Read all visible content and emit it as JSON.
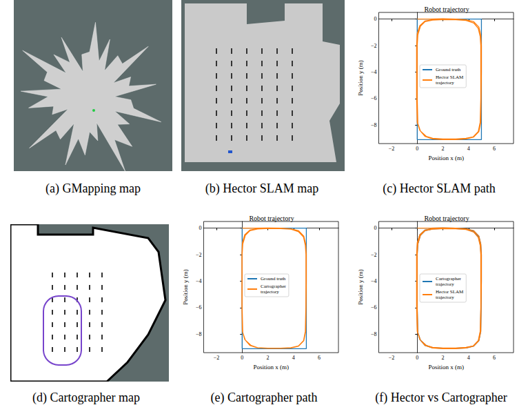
{
  "captions": [
    "(a) GMapping map",
    "(b) Hector SLAM map",
    "(c) Hector SLAM path",
    "(d) Cartographer map",
    "(e) Cartographer path",
    "(f) Hector vs Cartographer"
  ],
  "chart_data": [
    {
      "type": "line",
      "title": "Robot trajectory",
      "xlabel": "Position x (m)",
      "ylabel": "Position y (m)",
      "xlim": [
        -3,
        7.5
      ],
      "ylim": [
        -9.4,
        0.5
      ],
      "xticks": [
        {
          "value": -2,
          "label": "−2"
        },
        0,
        2,
        4,
        6
      ],
      "yticks": [
        {
          "value": -8,
          "label": "−8"
        },
        {
          "value": -6,
          "label": "−6"
        },
        {
          "value": -4,
          "label": "−4"
        },
        {
          "value": -2,
          "label": "−2"
        },
        0
      ],
      "grid": false,
      "legend": "center",
      "series": [
        {
          "name": "Ground truth",
          "color": "#1f77b4",
          "x": [
            0,
            5,
            5,
            0,
            0
          ],
          "values": [
            0,
            0,
            -9.1,
            -9.1,
            0
          ]
        },
        {
          "name": "Hector SLAM\ntrajectory",
          "color": "#ff7f0e",
          "x": [
            0,
            1,
            2,
            3,
            3.8,
            4.4,
            4.8,
            4.95,
            5.0,
            5.0,
            4.98,
            4.95,
            4.8,
            4.4,
            3.8,
            3,
            2,
            1.2,
            0.6,
            0.2,
            0,
            -0.05,
            -0.05,
            -0.05,
            0,
            0.2,
            0.6,
            1.2,
            2,
            3,
            3.8,
            4.4,
            4.75,
            4.9,
            4.95,
            4.95,
            4.95,
            4.9,
            4.75,
            4.35,
            3.8,
            3,
            2,
            1.2,
            0.7,
            0.25,
            0.05,
            0,
            0,
            0,
            0.05,
            0.25,
            0.6,
            1.2,
            1.8
          ],
          "values": [
            0,
            0,
            0.02,
            0,
            -0.05,
            -0.2,
            -0.6,
            -1.2,
            -2,
            -4,
            -6,
            -7.8,
            -8.5,
            -8.9,
            -9.05,
            -9.1,
            -9.1,
            -9.05,
            -8.85,
            -8.4,
            -7.8,
            -6,
            -4,
            -2,
            -1.1,
            -0.5,
            -0.15,
            -0.05,
            -0.05,
            -0.05,
            -0.1,
            -0.3,
            -0.7,
            -1.3,
            -2,
            -4,
            -6,
            -7.8,
            -8.5,
            -8.9,
            -9.0,
            -9.05,
            -9.05,
            -9.0,
            -8.85,
            -8.45,
            -7.9,
            -6,
            -4,
            -2,
            -1.2,
            -0.55,
            -0.2,
            -0.08,
            -0.05
          ]
        }
      ]
    },
    {
      "type": "line",
      "title": "Robot trajectory",
      "xlabel": "Position x (m)",
      "ylabel": "Position y (m)",
      "xlim": [
        -3,
        7.5
      ],
      "ylim": [
        -9.4,
        0.5
      ],
      "xticks": [
        {
          "value": -2,
          "label": "−2"
        },
        0,
        2,
        4,
        6
      ],
      "yticks": [
        {
          "value": -8,
          "label": "−8"
        },
        {
          "value": -6,
          "label": "−6"
        },
        {
          "value": -4,
          "label": "−4"
        },
        {
          "value": -2,
          "label": "−2"
        },
        0
      ],
      "grid": false,
      "legend": "center",
      "series": [
        {
          "name": "Ground truth",
          "color": "#1f77b4",
          "x": [
            0,
            5,
            5,
            0,
            0
          ],
          "values": [
            0,
            0,
            -9.1,
            -9.1,
            0
          ]
        },
        {
          "name": "Cartographer\ntrajectory",
          "color": "#ff7f0e",
          "x": [
            0,
            1,
            2,
            3,
            3.8,
            4.4,
            4.8,
            4.95,
            5.0,
            5.0,
            4.98,
            4.95,
            4.8,
            4.4,
            3.8,
            3,
            2,
            1.2,
            0.6,
            0.2,
            0.02,
            -0.02,
            -0.02,
            -0.02,
            0.02,
            0.2,
            0.6,
            1.2,
            2,
            3,
            3.8,
            4.4,
            4.78,
            4.92,
            4.97,
            4.97,
            4.96,
            4.92,
            4.78,
            4.38,
            3.8,
            3,
            2,
            1.2,
            0.7,
            0.25,
            0.05,
            0,
            0,
            0,
            0.05,
            0.25,
            0.6,
            1.2,
            1.8
          ],
          "values": [
            0,
            0,
            0.01,
            0,
            -0.05,
            -0.2,
            -0.6,
            -1.2,
            -2,
            -4,
            -6,
            -7.8,
            -8.5,
            -8.9,
            -9.05,
            -9.08,
            -9.08,
            -9.04,
            -8.85,
            -8.4,
            -7.8,
            -6,
            -4,
            -2,
            -1.1,
            -0.5,
            -0.15,
            -0.04,
            -0.04,
            -0.04,
            -0.08,
            -0.28,
            -0.68,
            -1.3,
            -2,
            -4,
            -6,
            -7.8,
            -8.5,
            -8.9,
            -9.02,
            -9.06,
            -9.06,
            -9.02,
            -8.86,
            -8.45,
            -7.9,
            -6,
            -4,
            -2,
            -1.2,
            -0.55,
            -0.2,
            -0.07,
            -0.04
          ]
        }
      ]
    },
    {
      "type": "line",
      "title": "Robot trajectory",
      "xlabel": "Position x (m)",
      "ylabel": "Position y (m)",
      "xlim": [
        -3,
        7.5
      ],
      "ylim": [
        -9.4,
        0.5
      ],
      "xticks": [
        {
          "value": -2,
          "label": "−2"
        },
        0,
        2,
        4,
        6
      ],
      "yticks": [
        {
          "value": -8,
          "label": "−8"
        },
        {
          "value": -6,
          "label": "−6"
        },
        {
          "value": -4,
          "label": "−4"
        },
        {
          "value": -2,
          "label": "−2"
        },
        0
      ],
      "grid": false,
      "legend": "center",
      "series": [
        {
          "name": "Cartographer\ntrajectory",
          "color": "#1f77b4",
          "x": [
            0,
            1,
            2,
            3,
            3.8,
            4.4,
            4.8,
            4.95,
            5.0,
            5.0,
            4.98,
            4.95,
            4.8,
            4.4,
            3.8,
            3,
            2,
            1.2,
            0.6,
            0.2,
            0.02,
            -0.02,
            -0.02,
            -0.02,
            0.02,
            0.2,
            0.6,
            1.2,
            2,
            3,
            3.8,
            4.4,
            4.78,
            4.92,
            4.97,
            4.97,
            4.96,
            4.92,
            4.78,
            4.38,
            3.8,
            3,
            2,
            1.2,
            0.7,
            0.25,
            0.05,
            0,
            0,
            0,
            0.05,
            0.25,
            0.6,
            1.2,
            1.8
          ],
          "values": [
            0,
            0,
            0.01,
            0,
            -0.05,
            -0.2,
            -0.6,
            -1.2,
            -2,
            -4,
            -6,
            -7.8,
            -8.5,
            -8.9,
            -9.05,
            -9.08,
            -9.08,
            -9.04,
            -8.85,
            -8.4,
            -7.8,
            -6,
            -4,
            -2,
            -1.1,
            -0.5,
            -0.15,
            -0.04,
            -0.04,
            -0.04,
            -0.08,
            -0.28,
            -0.68,
            -1.3,
            -2,
            -4,
            -6,
            -7.8,
            -8.5,
            -8.9,
            -9.02,
            -9.06,
            -9.06,
            -9.02,
            -8.86,
            -8.45,
            -7.9,
            -6,
            -4,
            -2,
            -1.2,
            -0.55,
            -0.2,
            -0.07,
            -0.04
          ]
        },
        {
          "name": "Hector SLAM\ntrajectory",
          "color": "#ff7f0e",
          "x": [
            0,
            1,
            2,
            3,
            3.8,
            4.4,
            4.8,
            4.95,
            5.0,
            5.0,
            4.98,
            4.95,
            4.8,
            4.4,
            3.8,
            3,
            2,
            1.2,
            0.6,
            0.2,
            0,
            -0.05,
            -0.05,
            -0.05,
            0,
            0.2,
            0.6,
            1.2,
            2,
            3,
            3.8,
            4.4,
            4.75,
            4.9,
            4.95,
            4.95,
            4.95,
            4.9,
            4.75,
            4.35,
            3.8,
            3,
            2,
            1.2,
            0.7,
            0.25,
            0.05,
            0,
            0,
            0,
            0.05,
            0.25,
            0.6,
            1.2,
            1.8
          ],
          "values": [
            0,
            0,
            0.02,
            0,
            -0.05,
            -0.2,
            -0.6,
            -1.2,
            -2,
            -4,
            -6,
            -7.8,
            -8.5,
            -8.9,
            -9.05,
            -9.1,
            -9.1,
            -9.05,
            -8.85,
            -8.4,
            -7.8,
            -6,
            -4,
            -2,
            -1.1,
            -0.5,
            -0.15,
            -0.05,
            -0.05,
            -0.05,
            -0.1,
            -0.3,
            -0.7,
            -1.3,
            -2,
            -4,
            -6,
            -7.8,
            -8.5,
            -8.9,
            -9.0,
            -9.05,
            -9.05,
            -9.0,
            -8.85,
            -8.45,
            -7.9,
            -6,
            -4,
            -2,
            -1.2,
            -0.55,
            -0.2,
            -0.08,
            -0.05
          ]
        }
      ]
    }
  ]
}
